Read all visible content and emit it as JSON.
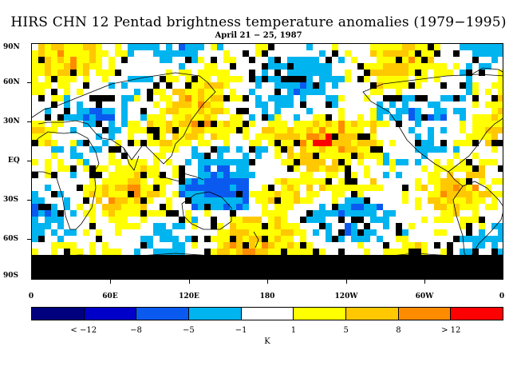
{
  "title": "HIRS CHN 12 Pentad brightness temperature anomalies (1979−1995)",
  "subtitle": "April 21 − 25, 1987",
  "lat_labels": [
    "90N",
    "60N",
    "30N",
    "EQ",
    "30S",
    "60S",
    "90S"
  ],
  "lon_labels": [
    "0",
    "60E",
    "120E",
    "180",
    "120W",
    "60W",
    "0"
  ],
  "colorbar": {
    "colors": [
      "#00007f",
      "#0000c8",
      "#0a5af0",
      "#00b4f0",
      "#ffffff",
      "#ffff00",
      "#ffc800",
      "#ff8c00",
      "#ff0000"
    ],
    "labels": [
      "< −12",
      "−8",
      "−5",
      "−1",
      "1",
      "5",
      "8",
      "> 12"
    ],
    "units": "K"
  }
}
